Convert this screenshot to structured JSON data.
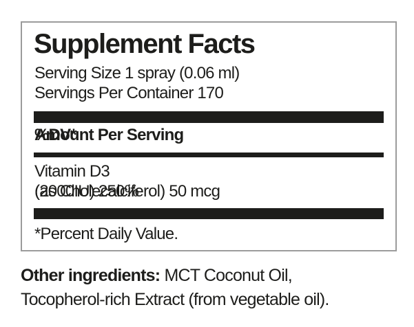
{
  "label": {
    "title": "Supplement Facts",
    "serving_size": "Serving Size 1 spray (0.06 ml)",
    "servings_per_container": "Servings Per Container 170",
    "header": {
      "amount": "Amount Per Serving",
      "dv": "%DV*"
    },
    "rows": [
      {
        "name": "Vitamin D3",
        "detail": "(as Cholecalciferol) 50 mcg",
        "dv": "(2000IU) 250%"
      }
    ],
    "footnote": "*Percent Daily Value."
  },
  "other_ingredients": {
    "bold": "Other ingredients:",
    "line1_rest": " MCT Coconut Oil,",
    "line2": "Tocopherol-rich Extract (from vegetable oil)."
  },
  "colors": {
    "text": "#1d1d1b",
    "bar": "#1d1d1b",
    "border": "#9b9b9b",
    "background": "#ffffff"
  }
}
